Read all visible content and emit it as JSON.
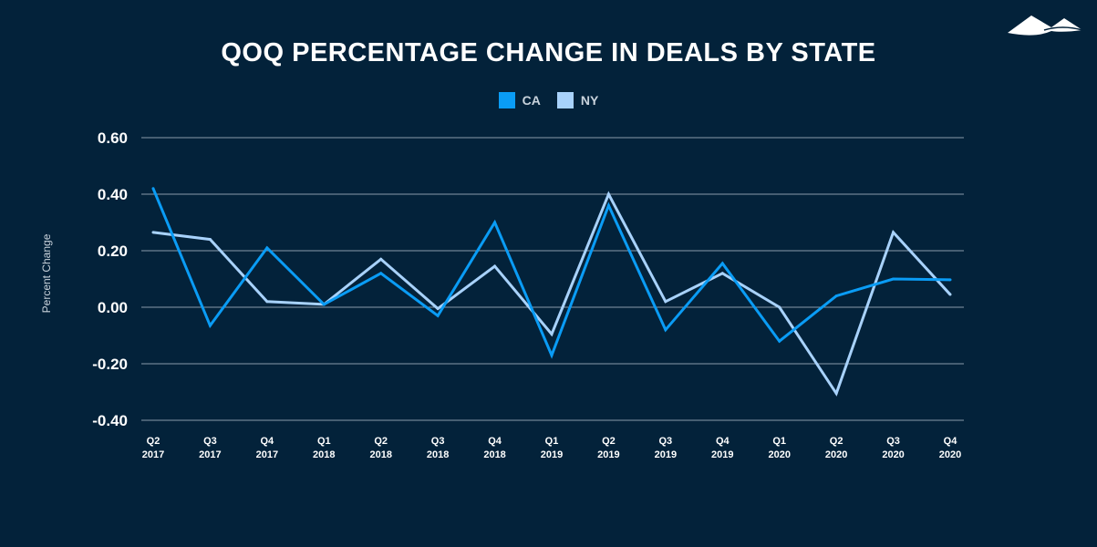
{
  "chart_data": {
    "type": "line",
    "title": "QOQ PERCENTAGE CHANGE IN DEALS BY STATE",
    "xlabel": "",
    "ylabel": "Percent Change",
    "ylim": [
      -0.4,
      0.6
    ],
    "yticks": [
      "0.60",
      "0.40",
      "0.20",
      "0.00",
      "-0.20",
      "-0.40"
    ],
    "ytick_values": [
      0.6,
      0.4,
      0.2,
      0,
      -0.2,
      -0.4
    ],
    "grid": true,
    "legend_position": "top-center",
    "categories": [
      [
        "Q2",
        "2017"
      ],
      [
        "Q3",
        "2017"
      ],
      [
        "Q4",
        "2017"
      ],
      [
        "Q1",
        "2018"
      ],
      [
        "Q2",
        "2018"
      ],
      [
        "Q3",
        "2018"
      ],
      [
        "Q4",
        "2018"
      ],
      [
        "Q1",
        "2019"
      ],
      [
        "Q2",
        "2019"
      ],
      [
        "Q3",
        "2019"
      ],
      [
        "Q4",
        "2019"
      ],
      [
        "Q1",
        "2020"
      ],
      [
        "Q2",
        "2020"
      ],
      [
        "Q3",
        "2020"
      ],
      [
        "Q4",
        "2020"
      ]
    ],
    "series": [
      {
        "name": "CA",
        "color": "#0a9cf5",
        "values": [
          0.42,
          -0.065,
          0.21,
          0.01,
          0.12,
          -0.03,
          0.3,
          -0.17,
          0.36,
          -0.08,
          0.155,
          -0.12,
          0.04,
          0.1,
          0.097
        ]
      },
      {
        "name": "NY",
        "color": "#a8d2fb",
        "values": [
          0.265,
          0.24,
          0.02,
          0.01,
          0.17,
          -0.005,
          0.145,
          -0.095,
          0.4,
          0.02,
          0.12,
          0.0,
          -0.305,
          0.265,
          0.045
        ]
      }
    ]
  },
  "colors": {
    "background": "#03223a",
    "grid": "#8a9bab",
    "text": "#ffffff",
    "axis_text": "#c9d3dc"
  },
  "logo": {
    "icon": "mountains-logo"
  }
}
